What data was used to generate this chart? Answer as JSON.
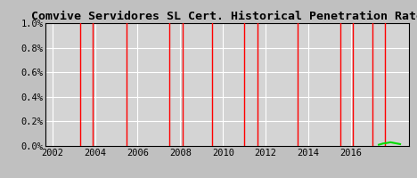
{
  "title": "Comvive Servidores SL Cert. Historical Penetration Rate",
  "title_fontsize": 9.5,
  "bg_color": "#c0c0c0",
  "grid_color": "#ffffff",
  "plot_bg_color": "#d4d4d4",
  "xmin": 2001.7,
  "xmax": 2018.7,
  "ymin": 0.0,
  "ymax": 1.0,
  "yticks": [
    0.0,
    0.2,
    0.4,
    0.6,
    0.8,
    1.0
  ],
  "ytick_labels": [
    "0.0%",
    "0.2%",
    "0.4%",
    "0.6%",
    "0.8%",
    "1.0%"
  ],
  "xticks": [
    2002,
    2004,
    2006,
    2008,
    2010,
    2012,
    2014,
    2016
  ],
  "red_lines_x": [
    2003.3,
    2003.9,
    2005.5,
    2007.5,
    2008.1,
    2009.5,
    2011.0,
    2011.6,
    2013.5,
    2015.5,
    2016.1,
    2017.0,
    2017.6
  ],
  "green_data_x": [
    2017.3,
    2017.5,
    2017.7,
    2017.85,
    2018.0,
    2018.15,
    2018.3
  ],
  "green_data_y": [
    0.01,
    0.02,
    0.025,
    0.03,
    0.025,
    0.02,
    0.015
  ],
  "green_color": "#00dd00",
  "red_color": "#ff0000",
  "red_lw": 1.0,
  "green_lw": 1.5,
  "tick_fontsize": 7.5,
  "font_family": "monospace"
}
